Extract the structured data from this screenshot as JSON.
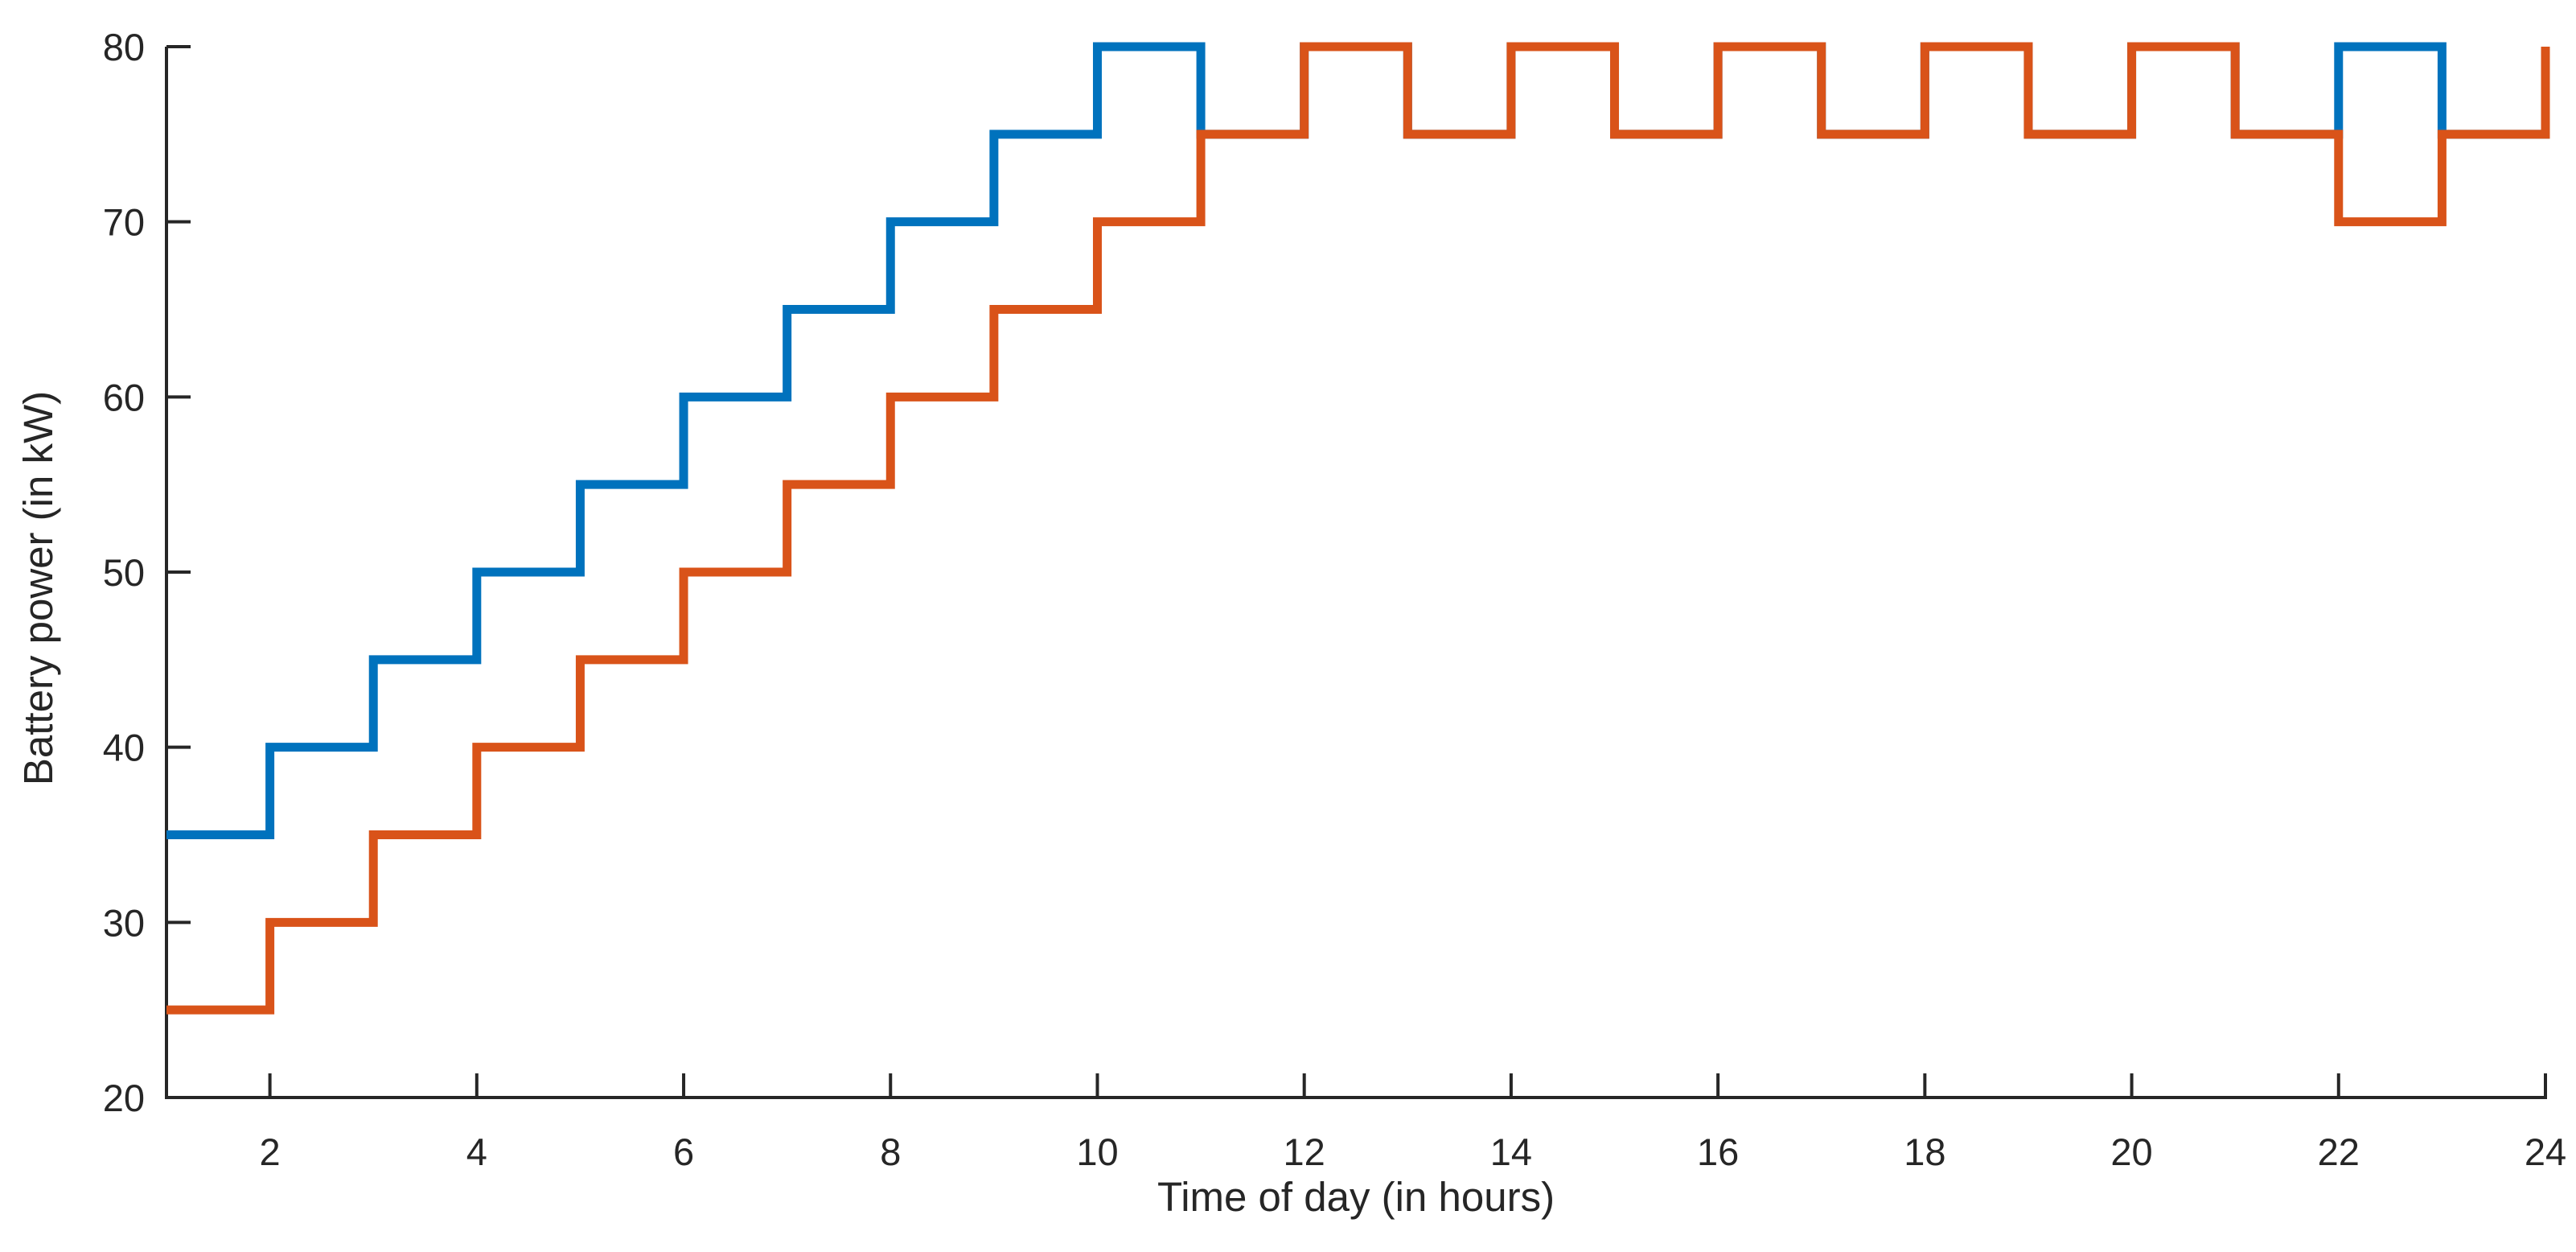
{
  "chart_data": {
    "type": "line",
    "subtype": "stairs-step-post",
    "title": "",
    "xlabel": "Time of day (in hours)",
    "ylabel": "Battery power (in kW)",
    "xlim": [
      1,
      24
    ],
    "ylim": [
      20,
      80
    ],
    "xticks": [
      2,
      4,
      6,
      8,
      10,
      12,
      14,
      16,
      18,
      20,
      22,
      24
    ],
    "yticks": [
      20,
      30,
      40,
      50,
      60,
      70,
      80
    ],
    "grid": false,
    "legend": null,
    "axis_color": "#262626",
    "background_color": "#ffffff",
    "x": [
      1,
      2,
      3,
      4,
      5,
      6,
      7,
      8,
      9,
      10,
      11,
      12,
      13,
      14,
      15,
      16,
      17,
      18,
      19,
      20,
      21,
      22,
      23,
      24
    ],
    "series": [
      {
        "name": "series-1-blue",
        "color": "#0072BD",
        "values": [
          35,
          40,
          45,
          50,
          55,
          60,
          65,
          70,
          75,
          80,
          75,
          80,
          75,
          80,
          75,
          80,
          75,
          80,
          75,
          80,
          75,
          80,
          75,
          80
        ]
      },
      {
        "name": "series-2-orange",
        "color": "#D95319",
        "values": [
          25,
          30,
          35,
          40,
          45,
          50,
          55,
          60,
          65,
          70,
          75,
          80,
          75,
          80,
          75,
          80,
          75,
          80,
          75,
          80,
          75,
          70,
          75,
          80
        ]
      }
    ]
  }
}
